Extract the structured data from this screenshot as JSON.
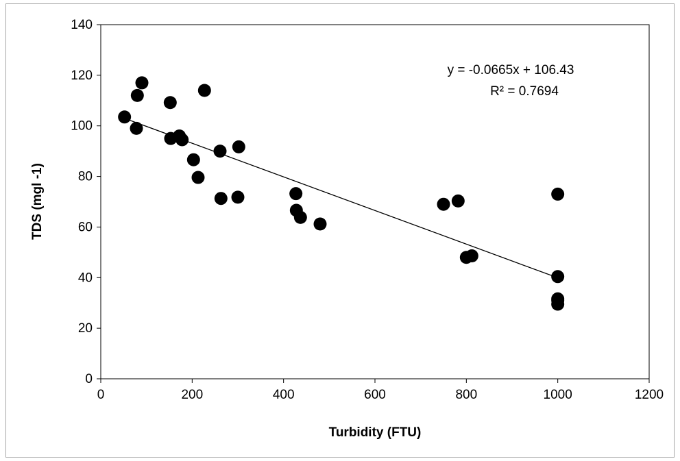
{
  "chart_data": {
    "type": "scatter",
    "xlabel": "Turbidity (FTU)",
    "ylabel": "TDS (mgl -1)",
    "xlim": [
      0,
      1200
    ],
    "ylim": [
      0,
      140
    ],
    "x_ticks": [
      0,
      200,
      400,
      600,
      800,
      1000,
      1200
    ],
    "y_ticks": [
      0,
      20,
      40,
      60,
      80,
      100,
      120,
      140
    ],
    "grid": false,
    "legend": "none",
    "marker_color": "#000000",
    "series": [
      {
        "x": [
          52,
          78,
          80,
          90,
          152,
          153,
          172,
          178,
          203,
          213,
          227,
          261,
          263,
          300,
          302,
          427,
          428,
          437,
          480,
          750,
          782,
          800,
          812,
          1000,
          1000,
          1000,
          1000,
          1000
        ],
        "y": [
          103.5,
          99,
          112,
          117,
          109.2,
          95,
          96,
          94.5,
          86.6,
          79.6,
          114,
          90,
          71.3,
          71.8,
          91.7,
          73.2,
          66.6,
          63.8,
          61.2,
          69,
          70.3,
          48,
          48.6,
          73,
          40.4,
          31.6,
          29.5,
          31
        ]
      }
    ],
    "trendline": {
      "slope": -0.0665,
      "intercept": 106.43,
      "x_range": [
        52,
        1000
      ],
      "equation": "y = -0.0665x + 106.43",
      "r_squared": "R² = 0.7694"
    }
  }
}
